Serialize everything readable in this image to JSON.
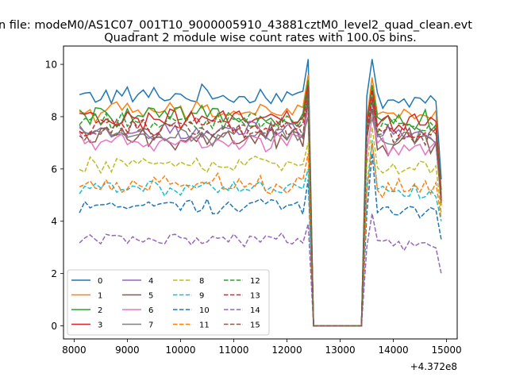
{
  "chart_data": {
    "type": "line",
    "suptitle": "n file: modeM0/AS1C07_001T10_9000005910_43881cztM0_level2_quad_clean.evt",
    "title": "Quadrant 2 module wise count rates with 100.0s bins.",
    "xlabel": "",
    "ylabel": "",
    "offset_text": "+4.372e8",
    "xlim": [
      7800,
      15200
    ],
    "ylim": [
      -0.5,
      10.7
    ],
    "xticks": [
      8000,
      9000,
      10000,
      11000,
      12000,
      13000,
      14000,
      15000
    ],
    "xtick_labels": [
      "8000",
      "9000",
      "10000",
      "11000",
      "12000",
      "13000",
      "14000",
      "15000"
    ],
    "yticks": [
      0,
      2,
      4,
      6,
      8,
      10
    ],
    "ytick_labels": [
      "0",
      "2",
      "4",
      "6",
      "8",
      "10"
    ],
    "x_start": 8100,
    "x_step": 100,
    "n_points": 69,
    "gap_start": 12500,
    "gap_end": 13400,
    "legend": {
      "placement": "lower-left",
      "columns": 4
    },
    "series": [
      {
        "name": "0",
        "color": "#1f77b4",
        "dashed": false,
        "base": 8.8,
        "amp": 0.3,
        "seg1_end": 10.2,
        "seg2_start": 10.2,
        "end": 5.6
      },
      {
        "name": "1",
        "color": "#ff7f0e",
        "dashed": false,
        "base": 8.2,
        "amp": 0.3,
        "seg1_end": 9.6,
        "seg2_start": 9.5,
        "end": 4.6
      },
      {
        "name": "2",
        "color": "#2ca02c",
        "dashed": false,
        "base": 8.0,
        "amp": 0.3,
        "seg1_end": 9.4,
        "seg2_start": 9.2,
        "end": 5.2
      },
      {
        "name": "3",
        "color": "#d62728",
        "dashed": false,
        "base": 7.9,
        "amp": 0.3,
        "seg1_end": 9.2,
        "seg2_start": 9.0,
        "end": 4.9
      },
      {
        "name": "4",
        "color": "#9467bd",
        "dashed": false,
        "base": 7.4,
        "amp": 0.3,
        "seg1_end": 8.9,
        "seg2_start": 8.6,
        "end": 4.8
      },
      {
        "name": "5",
        "color": "#8c564b",
        "dashed": false,
        "base": 7.2,
        "amp": 0.4,
        "seg1_end": 8.6,
        "seg2_start": 8.3,
        "end": 4.7
      },
      {
        "name": "6",
        "color": "#e377c2",
        "dashed": false,
        "base": 7.0,
        "amp": 0.3,
        "seg1_end": 8.3,
        "seg2_start": 8.0,
        "end": 4.9
      },
      {
        "name": "7",
        "color": "#7f7f7f",
        "dashed": false,
        "base": 7.3,
        "amp": 0.3,
        "seg1_end": 8.0,
        "seg2_start": 7.9,
        "end": 5.0
      },
      {
        "name": "8",
        "color": "#bcbd22",
        "dashed": true,
        "base": 6.2,
        "amp": 0.25,
        "seg1_end": 7.0,
        "seg2_start": 7.6,
        "end": 4.3
      },
      {
        "name": "9",
        "color": "#17becf",
        "dashed": true,
        "base": 5.3,
        "amp": 0.25,
        "seg1_end": 6.0,
        "seg2_start": 7.1,
        "end": 4.0
      },
      {
        "name": "10",
        "color": "#1f77b4",
        "dashed": true,
        "base": 4.6,
        "amp": 0.25,
        "seg1_end": 5.6,
        "seg2_start": 6.6,
        "end": 3.3
      },
      {
        "name": "11",
        "color": "#ff7f0e",
        "dashed": true,
        "base": 5.4,
        "amp": 0.3,
        "seg1_end": 6.6,
        "seg2_start": 7.0,
        "end": 4.1
      },
      {
        "name": "12",
        "color": "#2ca02c",
        "dashed": true,
        "base": 7.8,
        "amp": 0.3,
        "seg1_end": 9.0,
        "seg2_start": 8.8,
        "end": 5.0
      },
      {
        "name": "13",
        "color": "#d62728",
        "dashed": true,
        "base": 7.6,
        "amp": 0.3,
        "seg1_end": 8.9,
        "seg2_start": 8.7,
        "end": 4.8
      },
      {
        "name": "14",
        "color": "#9467bd",
        "dashed": true,
        "base": 3.3,
        "amp": 0.2,
        "seg1_end": 3.9,
        "seg2_start": 4.3,
        "end": 2.0
      },
      {
        "name": "15",
        "color": "#8c564b",
        "dashed": true,
        "base": 7.5,
        "amp": 0.3,
        "seg1_end": 9.0,
        "seg2_start": 8.6,
        "end": 4.9
      }
    ]
  }
}
